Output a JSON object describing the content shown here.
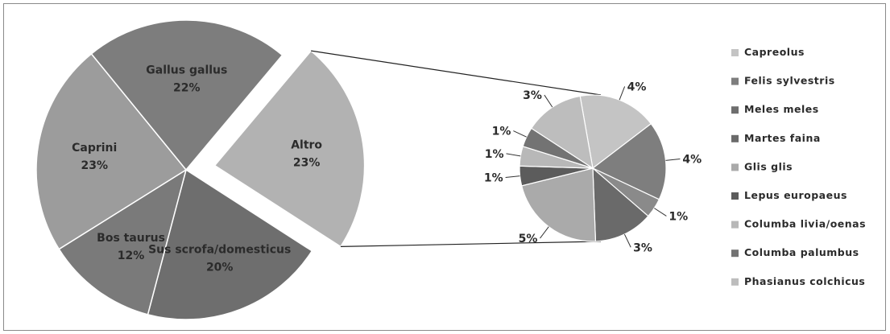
{
  "chart_data": {
    "type": "pie",
    "title": "",
    "main_pie": {
      "slices": [
        {
          "label": "Altro",
          "value": 23,
          "value_label": "23%",
          "color": "#b2b2b2",
          "exploded": true
        },
        {
          "label": "Sus scrofa/domesticus",
          "value": 20,
          "value_label": "20%",
          "color": "#6e6e6e"
        },
        {
          "label": "Bos taurus",
          "value": 12,
          "value_label": "12%",
          "color": "#7a7a7a"
        },
        {
          "label": "Caprini",
          "value": 23,
          "value_label": "23%",
          "color": "#9c9c9c"
        },
        {
          "label": "Gallus gallus",
          "value": 22,
          "value_label": "22%",
          "color": "#7d7d7d"
        }
      ]
    },
    "detail_pie": {
      "parent": "Altro",
      "slices": [
        {
          "label": "Capreolus",
          "value": 4,
          "value_label": "4%",
          "color": "#c4c4c4"
        },
        {
          "label": "Felis sylvestris",
          "value": 4,
          "value_label": "4%",
          "color": "#7e7e7e"
        },
        {
          "label": "Meles meles",
          "value": 1,
          "value_label": "1%",
          "color": "#8a8a8a"
        },
        {
          "label": "Martes faina",
          "value": 3,
          "value_label": "3%",
          "color": "#6a6a6a"
        },
        {
          "label": "Glis glis",
          "value": 5,
          "value_label": "5%",
          "color": "#aaaaaa"
        },
        {
          "label": "Lepus europaeus",
          "value": 1,
          "value_label": "1%",
          "color": "#5c5c5c"
        },
        {
          "label": "Columba livia/oenas",
          "value": 1,
          "value_label": "1%",
          "color": "#b8b8b8"
        },
        {
          "label": "Columba palumbus",
          "value": 1,
          "value_label": "1%",
          "color": "#737373"
        },
        {
          "label": "Phasianus colchicus",
          "value": 3,
          "value_label": "3%",
          "color": "#bdbdbd"
        }
      ]
    },
    "legend": {
      "placement": "right",
      "entries": [
        {
          "label": "Capreolus",
          "color": "#c4c4c4"
        },
        {
          "label": "Felis sylvestris",
          "color": "#7e7e7e"
        },
        {
          "label": "Meles meles",
          "color": "#6e6e6e"
        },
        {
          "label": "Martes faina",
          "color": "#6a6a6a"
        },
        {
          "label": "Glis glis",
          "color": "#aaaaaa"
        },
        {
          "label": "Lepus europaeus",
          "color": "#5c5c5c"
        },
        {
          "label": "Columba livia/oenas",
          "color": "#b8b8b8"
        },
        {
          "label": "Columba palumbus",
          "color": "#737373"
        },
        {
          "label": "Phasianus colchicus",
          "color": "#bdbdbd"
        }
      ]
    }
  }
}
